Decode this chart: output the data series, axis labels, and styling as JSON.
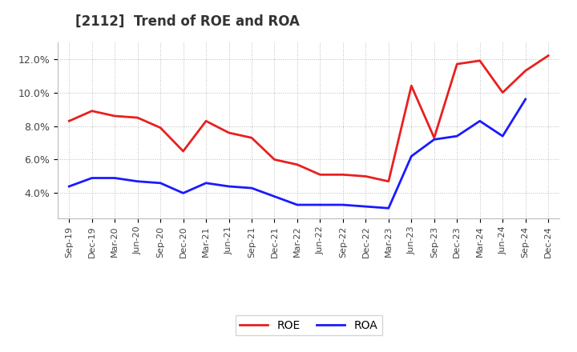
{
  "title": "[2112]  Trend of ROE and ROA",
  "x_labels": [
    "Sep-19",
    "Dec-19",
    "Mar-20",
    "Jun-20",
    "Sep-20",
    "Dec-20",
    "Mar-21",
    "Jun-21",
    "Sep-21",
    "Dec-21",
    "Mar-22",
    "Jun-22",
    "Sep-22",
    "Dec-22",
    "Mar-23",
    "Jun-23",
    "Sep-23",
    "Dec-23",
    "Mar-24",
    "Jun-24",
    "Sep-24",
    "Dec-24"
  ],
  "ROE": [
    8.3,
    8.9,
    8.6,
    8.5,
    7.9,
    6.5,
    8.3,
    7.6,
    7.3,
    6.0,
    5.7,
    5.1,
    5.1,
    5.0,
    4.7,
    10.4,
    7.3,
    11.7,
    11.9,
    10.0,
    11.3,
    12.2
  ],
  "ROA": [
    4.4,
    4.9,
    4.9,
    4.7,
    4.6,
    4.0,
    4.6,
    4.4,
    4.3,
    3.8,
    3.3,
    3.3,
    3.3,
    3.2,
    3.1,
    6.2,
    7.2,
    7.4,
    8.3,
    7.4,
    9.6,
    null
  ],
  "ROE_color": "#e82020",
  "ROA_color": "#1a1aff",
  "ylim": [
    2.5,
    13.0
  ],
  "yticks": [
    4.0,
    6.0,
    8.0,
    10.0,
    12.0
  ],
  "background_color": "#ffffff",
  "grid_color": "#aaaaaa",
  "legend_labels": [
    "ROE",
    "ROA"
  ],
  "title_fontsize": 12,
  "title_color": "#333333"
}
